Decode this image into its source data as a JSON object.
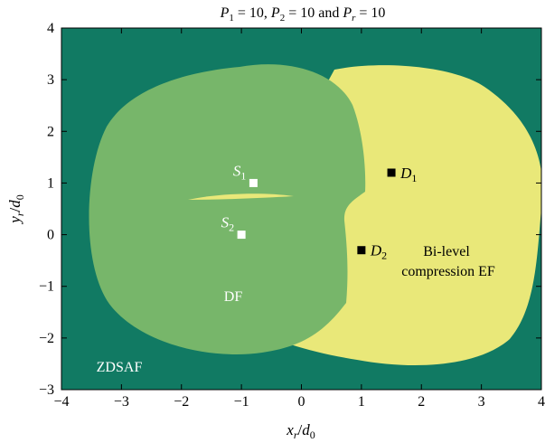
{
  "chart_data": {
    "type": "heatmap",
    "title": {
      "p1_sym": "P",
      "p1_sub": "1",
      "p1_val": " = 10, ",
      "p2_sym": "P",
      "p2_sub": "2",
      "p2_val": " = 10 and ",
      "pr_sym": "P",
      "pr_sub": "r",
      "pr_val": " = 10"
    },
    "xlabel": {
      "main": "x",
      "sub": "r",
      "slash": "/",
      "den": "d",
      "den_sub": "0"
    },
    "ylabel": {
      "main": "y",
      "sub": "r",
      "slash": "/",
      "den": "d",
      "den_sub": "0"
    },
    "xlim": [
      -4,
      4
    ],
    "ylim": [
      -3,
      4
    ],
    "xticks": [
      "−4",
      "−3",
      "−2",
      "−1",
      "0",
      "1",
      "2",
      "3",
      "4"
    ],
    "yticks": [
      "−3",
      "−2",
      "−1",
      "0",
      "1",
      "2",
      "3",
      "4"
    ],
    "grid": false,
    "regions": [
      {
        "name": "ZDSAF",
        "color": "#117a63",
        "label_lines": [
          "ZDSAF"
        ],
        "label_color": "#ffffff"
      },
      {
        "name": "DF",
        "color": "#77b66a",
        "label_lines": [
          "DF"
        ],
        "label_color": "#ffffff"
      },
      {
        "name": "Bi-level compression EF",
        "color": "#e9e879",
        "label_lines": [
          "Bi-level",
          "compression EF"
        ],
        "label_color": "#000000"
      }
    ],
    "points": [
      {
        "sym": "S",
        "sub": "1",
        "x": -0.8,
        "y": 1.0,
        "color": "#ffffff"
      },
      {
        "sym": "S",
        "sub": "2",
        "x": -1.0,
        "y": 0.0,
        "color": "#ffffff"
      },
      {
        "sym": "D",
        "sub": "1",
        "x": 1.5,
        "y": 1.2,
        "color": "#000000"
      },
      {
        "sym": "D",
        "sub": "2",
        "x": 1.0,
        "y": -0.3,
        "color": "#000000"
      }
    ]
  }
}
